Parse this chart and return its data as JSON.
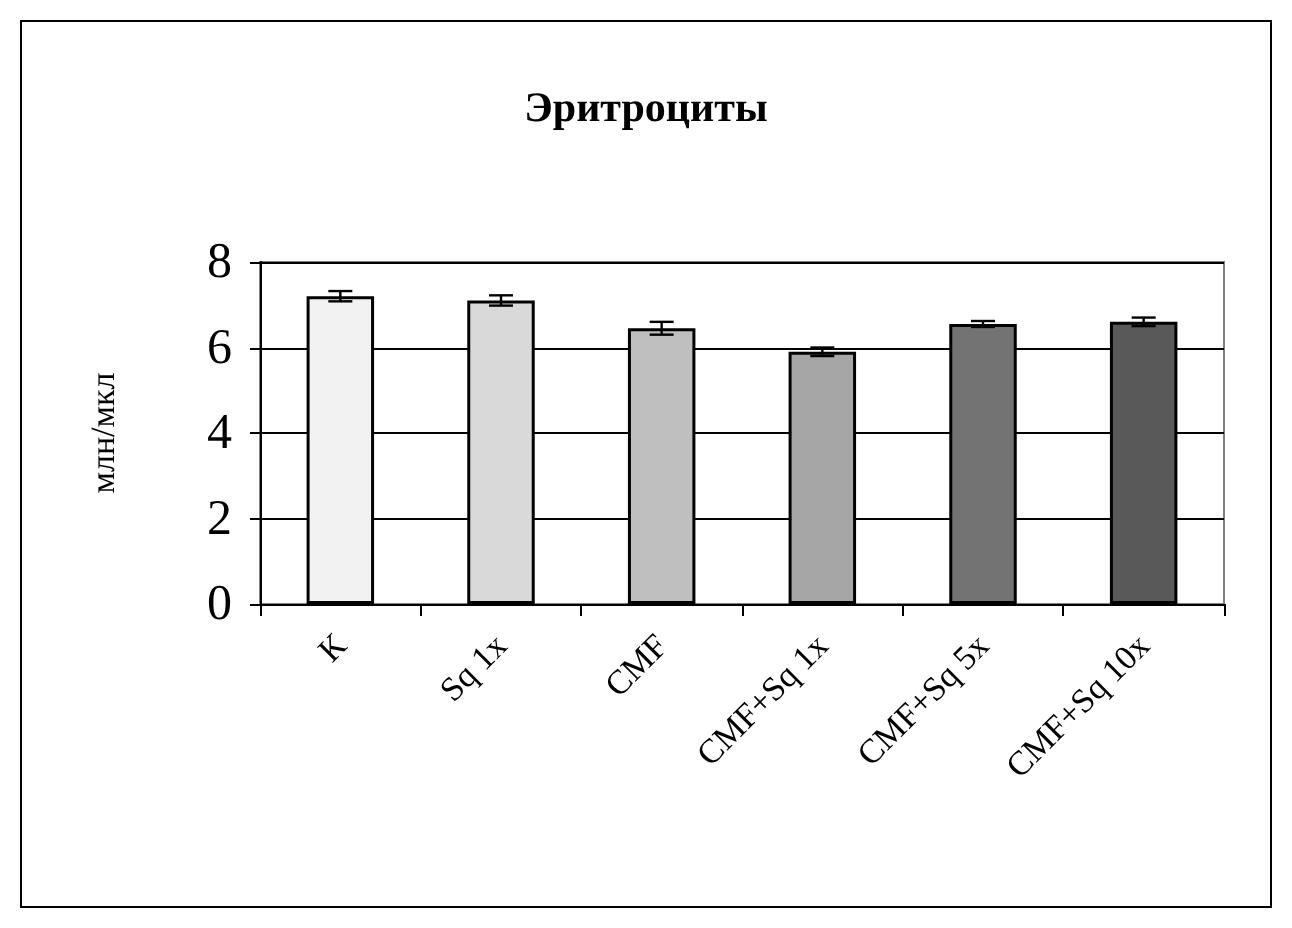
{
  "chart_data": {
    "type": "bar",
    "title": "Эритроциты",
    "ylabel": "млн/мкл",
    "categories": [
      "К",
      "Sq 1x",
      "CMF",
      "CMF+Sq 1x",
      "CMF+Sq 5x",
      "CMF+Sq 10x"
    ],
    "values": [
      7.2,
      7.1,
      6.45,
      5.9,
      6.55,
      6.6
    ],
    "errors": [
      0.12,
      0.12,
      0.15,
      0.1,
      0.07,
      0.1
    ],
    "colors": [
      "#f2f2f2",
      "#d9d9d9",
      "#bfbfbf",
      "#a6a6a6",
      "#737373",
      "#595959"
    ],
    "ylim": [
      0,
      8
    ],
    "yticks": [
      0,
      2,
      4,
      6,
      8
    ],
    "grid": "y"
  }
}
